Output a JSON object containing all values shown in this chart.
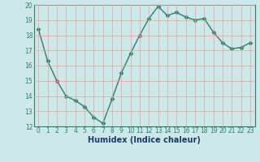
{
  "x": [
    0,
    1,
    2,
    3,
    4,
    5,
    6,
    7,
    8,
    9,
    10,
    11,
    12,
    13,
    14,
    15,
    16,
    17,
    18,
    19,
    20,
    21,
    22,
    23
  ],
  "y": [
    18.4,
    16.3,
    15.0,
    14.0,
    13.7,
    13.3,
    12.6,
    12.2,
    13.8,
    15.5,
    16.8,
    18.0,
    19.1,
    19.9,
    19.3,
    19.5,
    19.2,
    19.0,
    19.1,
    18.2,
    17.5,
    17.1,
    17.2,
    17.5
  ],
  "line_color": "#2e7d6e",
  "marker": "D",
  "marker_size": 2.5,
  "bg_color": "#cce8e8",
  "grid_color": "#e8a0a0",
  "xlabel": "Humidex (Indice chaleur)",
  "ylim": [
    12,
    20
  ],
  "xlim": [
    -0.5,
    23.5
  ],
  "yticks": [
    12,
    13,
    14,
    15,
    16,
    17,
    18,
    19,
    20
  ],
  "xticks": [
    0,
    1,
    2,
    3,
    4,
    5,
    6,
    7,
    8,
    9,
    10,
    11,
    12,
    13,
    14,
    15,
    16,
    17,
    18,
    19,
    20,
    21,
    22,
    23
  ],
  "xtick_labels": [
    "0",
    "1",
    "2",
    "3",
    "4",
    "5",
    "6",
    "7",
    "8",
    "9",
    "10",
    "11",
    "12",
    "13",
    "14",
    "15",
    "16",
    "17",
    "18",
    "19",
    "20",
    "21",
    "22",
    "23"
  ],
  "line_width": 1.0,
  "xlabel_color": "#1a3a6a",
  "xlabel_fontsize": 7,
  "tick_fontsize": 5.5,
  "spine_color": "#2e7d6e"
}
